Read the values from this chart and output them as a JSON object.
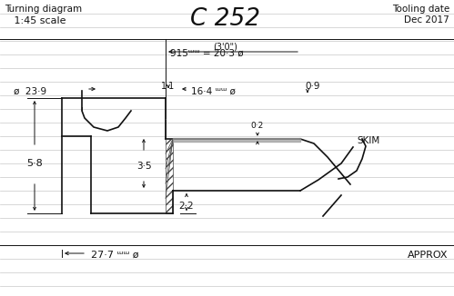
{
  "title": "C 252",
  "subtitle_left": "Turning diagram",
  "scale_text": "1:45 scale",
  "dim_3ft": "(3'0\")",
  "dim_915": "915ᵚᵚ = 20·3 ø",
  "dim_phi239": "ø  23·9",
  "dim_11": "1·1",
  "dim_164": "← 16·4 ᵚᵚ ø",
  "dim_09": "0·9",
  "dim_02": "0·2",
  "dim_35": "3·5",
  "dim_22": "2·2",
  "dim_58": "5·8",
  "dim_277": "← 27·7 ᵚᵚ ø",
  "approx": "APPROX",
  "skim": "SKIM",
  "bg_color": "#ffffff",
  "line_color": "#111111",
  "line_ruled_color": "#c8c8c8",
  "grey_band_color": "#999999"
}
